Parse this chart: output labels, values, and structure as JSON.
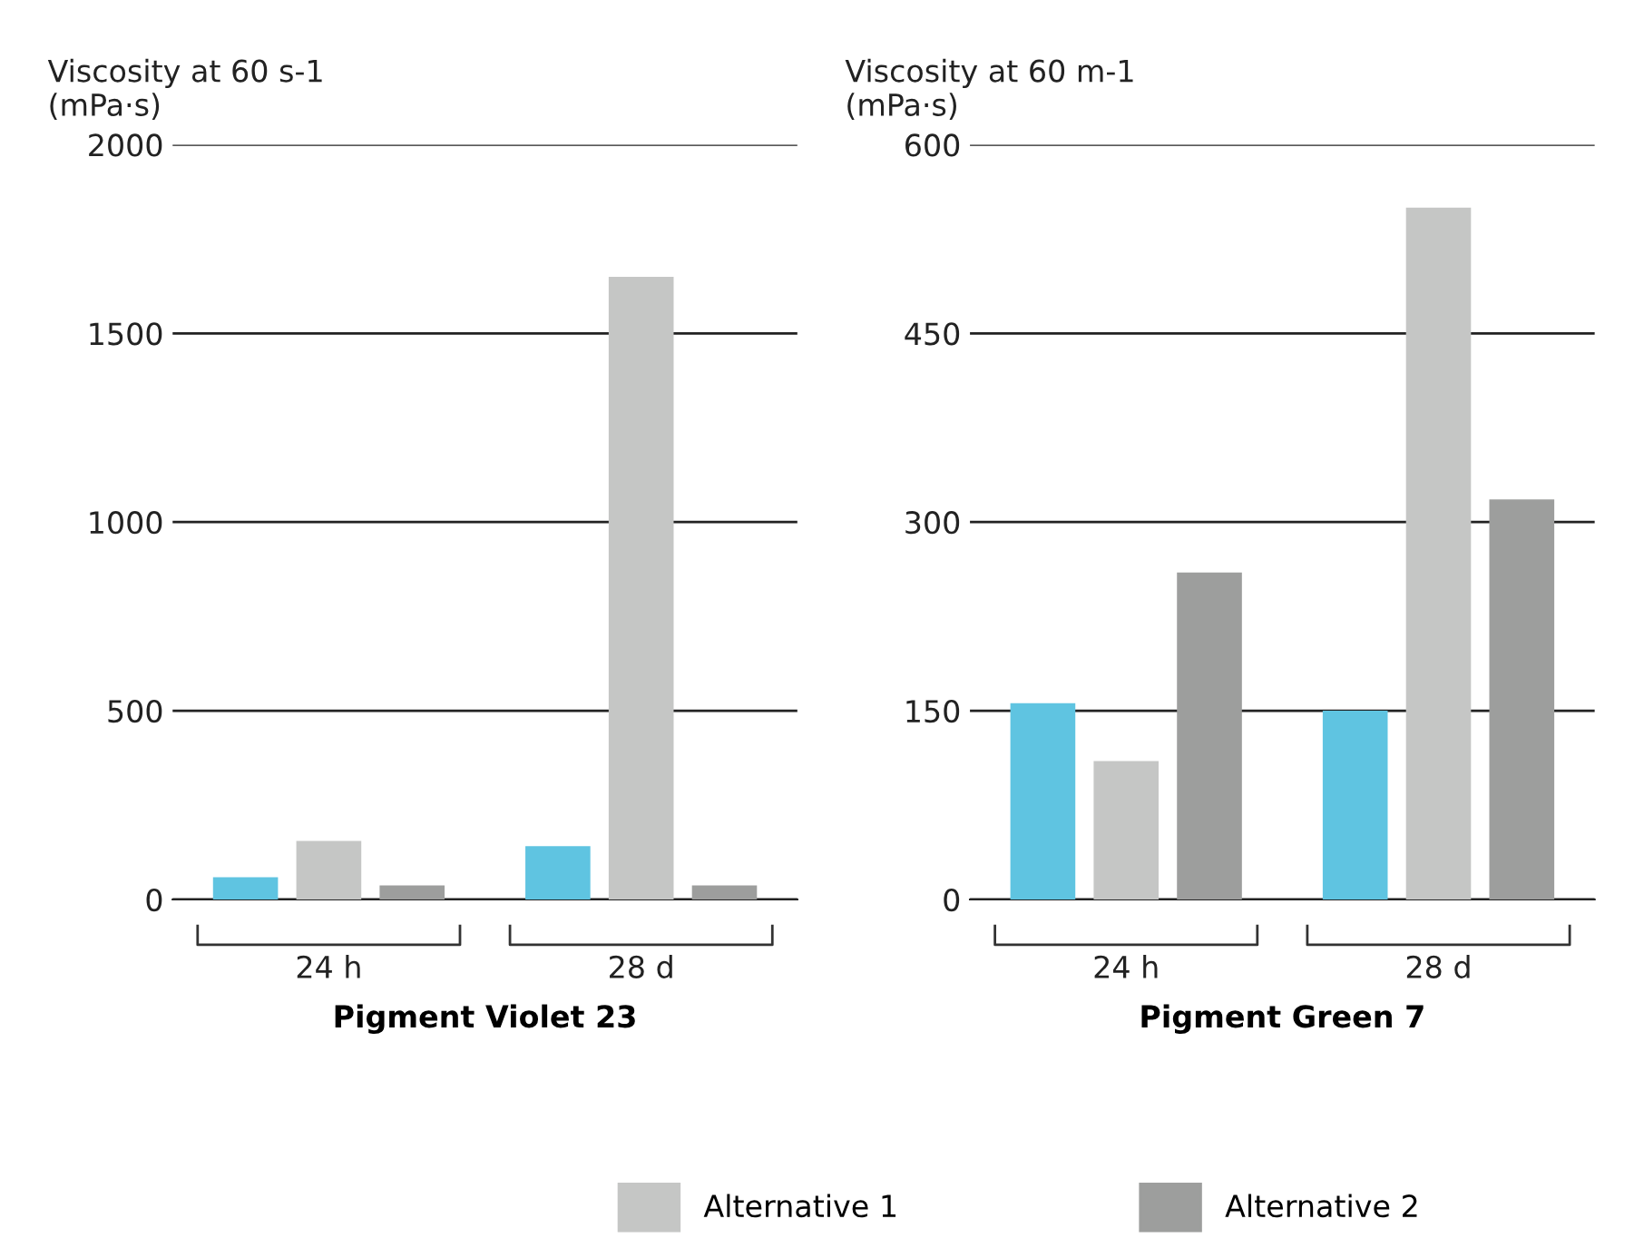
{
  "chart_data": [
    {
      "type": "bar",
      "ylabel": "Viscosity at 60 s-1\n(mPa·s)",
      "xlabel": "Pigment Violet 23",
      "categories": [
        "24 h",
        "28 d"
      ],
      "ylim": [
        0,
        2000
      ],
      "yticks": [
        0,
        500,
        1000,
        1500,
        2000
      ],
      "grid": "y",
      "legend": "bottom",
      "series": [
        {
          "color": "#5fc4e1",
          "values": [
            59,
            141
          ]
        },
        {
          "name": "Alternative 1",
          "color": "#c5c6c5",
          "values": [
            155,
            1650
          ]
        },
        {
          "name": "Alternative 2",
          "color": "#9d9e9d",
          "values": [
            37,
            37
          ]
        }
      ]
    },
    {
      "type": "bar",
      "ylabel": "Viscosity at 60 m-1\n(mPa·s)",
      "xlabel": "Pigment Green 7",
      "categories": [
        "24 h",
        "28 d"
      ],
      "ylim": [
        0,
        600
      ],
      "yticks": [
        0,
        150,
        300,
        450,
        600
      ],
      "grid": "y",
      "series": [
        {
          "color": "#5fc4e1",
          "values": [
            156,
            150
          ]
        },
        {
          "color": "#c5c6c5",
          "values": [
            110,
            550
          ]
        },
        {
          "color": "#9d9e9d",
          "values": [
            260,
            318
          ]
        }
      ]
    }
  ]
}
